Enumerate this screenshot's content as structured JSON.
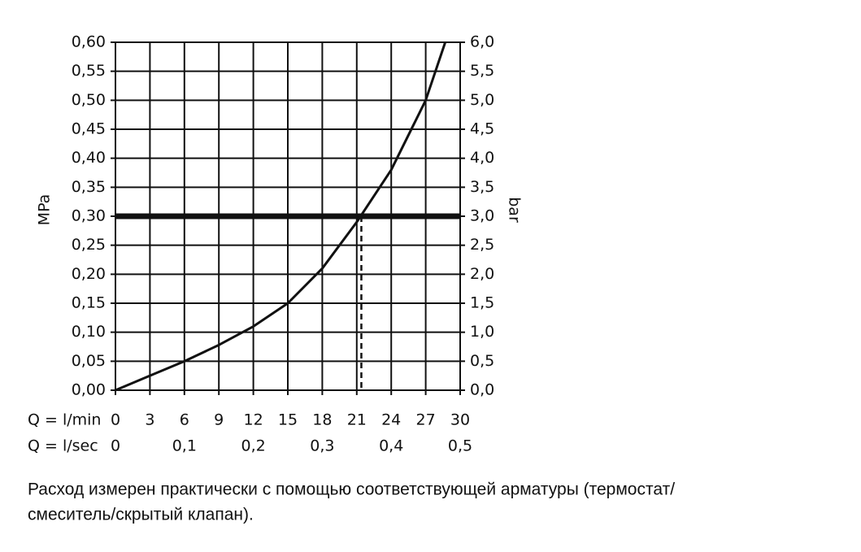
{
  "chart_data": {
    "type": "line",
    "x": [
      0,
      3,
      6,
      9,
      12,
      15,
      18,
      21,
      24,
      27,
      28.7
    ],
    "series": [
      {
        "color": "#111111",
        "values": [
          0,
          0.025,
          0.05,
          0.078,
          0.11,
          0.15,
          0.21,
          0.29,
          0.38,
          0.5,
          0.6
        ]
      }
    ],
    "xlim": [
      0,
      30
    ],
    "xticks": [
      0,
      3,
      6,
      9,
      12,
      15,
      18,
      21,
      24,
      27,
      30
    ],
    "x2lim": [
      0,
      0.5
    ],
    "x2ticks": [
      {
        "value": 0,
        "label": "0"
      },
      {
        "value": 0.1,
        "label": "0,1"
      },
      {
        "value": 0.2,
        "label": "0,2"
      },
      {
        "value": 0.3,
        "label": "0,3"
      },
      {
        "value": 0.4,
        "label": "0,4"
      },
      {
        "value": 0.5,
        "label": "0,5"
      }
    ],
    "ylim": [
      0,
      0.6
    ],
    "yticks": [
      {
        "value": 0,
        "label": "0,00"
      },
      {
        "value": 0.05,
        "label": "0,05"
      },
      {
        "value": 0.1,
        "label": "0,10"
      },
      {
        "value": 0.15,
        "label": "0,15"
      },
      {
        "value": 0.2,
        "label": "0,20"
      },
      {
        "value": 0.25,
        "label": "0,25"
      },
      {
        "value": 0.3,
        "label": "0,30"
      },
      {
        "value": 0.35,
        "label": "0,35"
      },
      {
        "value": 0.4,
        "label": "0,40"
      },
      {
        "value": 0.45,
        "label": "0,45"
      },
      {
        "value": 0.5,
        "label": "0,50"
      },
      {
        "value": 0.55,
        "label": "0,55"
      },
      {
        "value": 0.6,
        "label": "0,60"
      }
    ],
    "y2lim": [
      0,
      6
    ],
    "y2ticks": [
      {
        "value": 0,
        "label": "0,0"
      },
      {
        "value": 0.5,
        "label": "0,5"
      },
      {
        "value": 1,
        "label": "1,0"
      },
      {
        "value": 1.5,
        "label": "1,5"
      },
      {
        "value": 2,
        "label": "2,0"
      },
      {
        "value": 2.5,
        "label": "2,5"
      },
      {
        "value": 3,
        "label": "3,0"
      },
      {
        "value": 3.5,
        "label": "3,5"
      },
      {
        "value": 4,
        "label": "4,0"
      },
      {
        "value": 4.5,
        "label": "4,5"
      },
      {
        "value": 5,
        "label": "5,0"
      },
      {
        "value": 5.5,
        "label": "5,5"
      },
      {
        "value": 6,
        "label": "6,0"
      }
    ],
    "xlabel": "Q = l/min",
    "x2label": "Q = l/sec",
    "ylabel": "MPa",
    "y2label": "bar",
    "reference_y": 0.3,
    "reference_x": 21.4,
    "grid": true,
    "note_lines": [
      "Расход измерен практически с помощью соответствующей арматуры (термостат/",
      "смеситель/скрытый клапан)."
    ]
  }
}
